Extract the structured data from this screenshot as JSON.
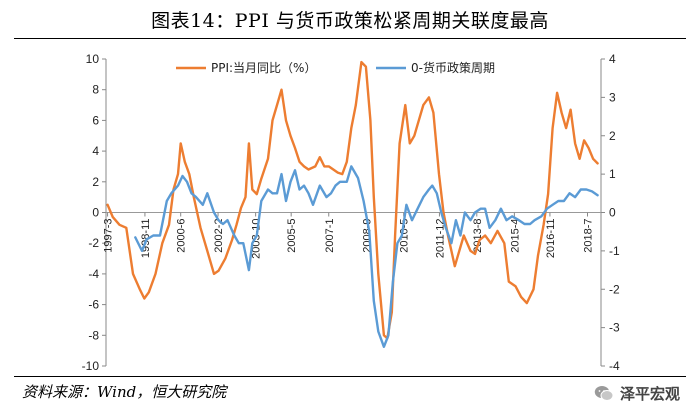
{
  "page": {
    "title": "图表14：PPI 与货币政策松紧周期关联度最高",
    "source": "资料来源：Wind，恒大研究院",
    "brand": "泽平宏观",
    "brand_icon": "wechat-icon"
  },
  "chart_data": {
    "type": "line",
    "title": "图表14：PPI 与货币政策松紧周期关联度最高",
    "left_axis": {
      "ylim": [
        -10,
        10
      ],
      "ticks": [
        -10,
        -8,
        -6,
        -4,
        -2,
        0,
        2,
        4,
        6,
        8,
        10
      ]
    },
    "right_axis": {
      "ylim": [
        -4,
        4
      ],
      "ticks": [
        -4,
        -3,
        -2,
        -1,
        0,
        1,
        2,
        3,
        4
      ]
    },
    "x_range": [
      1997.1,
      2019.1
    ],
    "x_ticks": [
      {
        "label": "1997-3",
        "x": 1997.17
      },
      {
        "label": "1998-11",
        "x": 1998.83
      },
      {
        "label": "2000-6",
        "x": 2000.42
      },
      {
        "label": "2002-2",
        "x": 2002.08
      },
      {
        "label": "2003-10",
        "x": 2003.75
      },
      {
        "label": "2005-5",
        "x": 2005.33
      },
      {
        "label": "2007-1",
        "x": 2007.0
      },
      {
        "label": "2008-9",
        "x": 2008.67
      },
      {
        "label": "2010-5",
        "x": 2010.33
      },
      {
        "label": "2011-12",
        "x": 2011.92
      },
      {
        "label": "2013-8",
        "x": 2013.58
      },
      {
        "label": "2015-4",
        "x": 2015.25
      },
      {
        "label": "2016-11",
        "x": 2016.83
      },
      {
        "label": "2018-7",
        "x": 2018.5
      }
    ],
    "legend": {
      "placement": "top"
    },
    "series": [
      {
        "name": "PPI:当月同比（%）",
        "axis": "left",
        "color": "#ED7D31",
        "points": [
          [
            1997.17,
            0.5
          ],
          [
            1997.4,
            -0.3
          ],
          [
            1997.7,
            -0.8
          ],
          [
            1998.0,
            -1.0
          ],
          [
            1998.3,
            -4.0
          ],
          [
            1998.6,
            -5.0
          ],
          [
            1998.8,
            -5.6
          ],
          [
            1999.0,
            -5.2
          ],
          [
            1999.3,
            -4.0
          ],
          [
            1999.6,
            -2.0
          ],
          [
            1999.9,
            -0.8
          ],
          [
            2000.1,
            1.5
          ],
          [
            2000.3,
            2.5
          ],
          [
            2000.42,
            4.5
          ],
          [
            2000.6,
            3.3
          ],
          [
            2000.8,
            2.5
          ],
          [
            2001.0,
            1.0
          ],
          [
            2001.3,
            -1.0
          ],
          [
            2001.6,
            -2.5
          ],
          [
            2001.9,
            -4.0
          ],
          [
            2002.1,
            -3.8
          ],
          [
            2002.4,
            -3.0
          ],
          [
            2002.7,
            -1.8
          ],
          [
            2002.9,
            -0.8
          ],
          [
            2003.1,
            0.3
          ],
          [
            2003.3,
            1.0
          ],
          [
            2003.45,
            4.5
          ],
          [
            2003.6,
            1.5
          ],
          [
            2003.8,
            1.2
          ],
          [
            2004.0,
            2.2
          ],
          [
            2004.3,
            3.5
          ],
          [
            2004.5,
            6.0
          ],
          [
            2004.7,
            7.0
          ],
          [
            2004.9,
            8.0
          ],
          [
            2005.1,
            6.0
          ],
          [
            2005.3,
            5.0
          ],
          [
            2005.5,
            4.2
          ],
          [
            2005.7,
            3.3
          ],
          [
            2005.9,
            3.0
          ],
          [
            2006.1,
            2.8
          ],
          [
            2006.4,
            3.0
          ],
          [
            2006.6,
            3.6
          ],
          [
            2006.8,
            3.0
          ],
          [
            2007.0,
            3.0
          ],
          [
            2007.2,
            2.8
          ],
          [
            2007.4,
            2.6
          ],
          [
            2007.6,
            2.5
          ],
          [
            2007.8,
            3.3
          ],
          [
            2008.0,
            5.5
          ],
          [
            2008.2,
            7.0
          ],
          [
            2008.45,
            9.8
          ],
          [
            2008.65,
            9.5
          ],
          [
            2008.85,
            6.0
          ],
          [
            2009.0,
            1.0
          ],
          [
            2009.2,
            -4.0
          ],
          [
            2009.45,
            -8.0
          ],
          [
            2009.6,
            -8.2
          ],
          [
            2009.8,
            -6.5
          ],
          [
            2009.95,
            -1.5
          ],
          [
            2010.15,
            4.5
          ],
          [
            2010.4,
            7.0
          ],
          [
            2010.6,
            4.5
          ],
          [
            2010.8,
            5.0
          ],
          [
            2011.0,
            6.0
          ],
          [
            2011.2,
            7.0
          ],
          [
            2011.45,
            7.5
          ],
          [
            2011.65,
            6.5
          ],
          [
            2011.9,
            2.5
          ],
          [
            2012.1,
            0.0
          ],
          [
            2012.3,
            -1.5
          ],
          [
            2012.6,
            -3.5
          ],
          [
            2012.8,
            -2.5
          ],
          [
            2013.0,
            -1.5
          ],
          [
            2013.3,
            -2.5
          ],
          [
            2013.5,
            -2.7
          ],
          [
            2013.7,
            -1.8
          ],
          [
            2013.95,
            -1.5
          ],
          [
            2014.2,
            -2.0
          ],
          [
            2014.5,
            -1.2
          ],
          [
            2014.8,
            -2.0
          ],
          [
            2015.0,
            -4.5
          ],
          [
            2015.3,
            -4.8
          ],
          [
            2015.55,
            -5.5
          ],
          [
            2015.8,
            -5.9
          ],
          [
            2016.1,
            -5.0
          ],
          [
            2016.3,
            -2.8
          ],
          [
            2016.55,
            -0.8
          ],
          [
            2016.75,
            1.2
          ],
          [
            2016.95,
            5.5
          ],
          [
            2017.15,
            7.8
          ],
          [
            2017.35,
            6.5
          ],
          [
            2017.55,
            5.5
          ],
          [
            2017.75,
            6.7
          ],
          [
            2017.95,
            4.5
          ],
          [
            2018.15,
            3.5
          ],
          [
            2018.35,
            4.7
          ],
          [
            2018.55,
            4.2
          ],
          [
            2018.75,
            3.5
          ],
          [
            2018.95,
            3.2
          ]
        ]
      },
      {
        "name": "0-货币政策周期",
        "axis": "right",
        "color": "#5B9BD5",
        "points": [
          [
            1998.4,
            -0.65
          ],
          [
            1998.7,
            -1.0
          ],
          [
            1998.9,
            -0.7
          ],
          [
            1999.2,
            -0.6
          ],
          [
            1999.5,
            -0.6
          ],
          [
            1999.8,
            0.3
          ],
          [
            2000.0,
            0.5
          ],
          [
            2000.3,
            0.7
          ],
          [
            2000.5,
            0.95
          ],
          [
            2000.7,
            0.8
          ],
          [
            2000.9,
            0.5
          ],
          [
            2001.1,
            0.4
          ],
          [
            2001.4,
            0.2
          ],
          [
            2001.6,
            0.5
          ],
          [
            2001.9,
            0.0
          ],
          [
            2002.1,
            -0.2
          ],
          [
            2002.3,
            -0.3
          ],
          [
            2002.5,
            -0.2
          ],
          [
            2002.8,
            -0.6
          ],
          [
            2003.0,
            -0.8
          ],
          [
            2003.2,
            -0.8
          ],
          [
            2003.45,
            -1.5
          ],
          [
            2003.6,
            -0.8
          ],
          [
            2003.8,
            -0.6
          ],
          [
            2004.0,
            0.3
          ],
          [
            2004.3,
            0.6
          ],
          [
            2004.5,
            0.5
          ],
          [
            2004.7,
            0.5
          ],
          [
            2004.9,
            1.0
          ],
          [
            2005.1,
            0.3
          ],
          [
            2005.3,
            0.8
          ],
          [
            2005.5,
            1.1
          ],
          [
            2005.7,
            0.6
          ],
          [
            2005.9,
            0.7
          ],
          [
            2006.1,
            0.5
          ],
          [
            2006.3,
            0.2
          ],
          [
            2006.6,
            0.7
          ],
          [
            2006.9,
            0.4
          ],
          [
            2007.1,
            0.5
          ],
          [
            2007.3,
            0.7
          ],
          [
            2007.5,
            0.8
          ],
          [
            2007.8,
            0.8
          ],
          [
            2008.0,
            1.2
          ],
          [
            2008.3,
            0.9
          ],
          [
            2008.55,
            0.3
          ],
          [
            2008.8,
            -0.5
          ],
          [
            2009.0,
            -2.3
          ],
          [
            2009.2,
            -3.1
          ],
          [
            2009.45,
            -3.5
          ],
          [
            2009.65,
            -3.2
          ],
          [
            2009.85,
            -1.8
          ],
          [
            2010.05,
            -0.8
          ],
          [
            2010.25,
            -0.6
          ],
          [
            2010.45,
            0.2
          ],
          [
            2010.7,
            -0.2
          ],
          [
            2010.95,
            0.1
          ],
          [
            2011.2,
            0.4
          ],
          [
            2011.45,
            0.6
          ],
          [
            2011.6,
            0.7
          ],
          [
            2011.8,
            0.5
          ],
          [
            2012.0,
            0.0
          ],
          [
            2012.2,
            -0.4
          ],
          [
            2012.45,
            -0.8
          ],
          [
            2012.65,
            -0.2
          ],
          [
            2012.85,
            -0.6
          ],
          [
            2013.05,
            0.0
          ],
          [
            2013.3,
            -0.2
          ],
          [
            2013.5,
            0.0
          ],
          [
            2013.75,
            0.1
          ],
          [
            2013.95,
            0.1
          ],
          [
            2014.15,
            -0.4
          ],
          [
            2014.4,
            -0.2
          ],
          [
            2014.65,
            0.1
          ],
          [
            2014.9,
            -0.2
          ],
          [
            2015.15,
            -0.1
          ],
          [
            2015.45,
            -0.2
          ],
          [
            2015.7,
            -0.3
          ],
          [
            2015.95,
            -0.3
          ],
          [
            2016.15,
            -0.2
          ],
          [
            2016.45,
            -0.1
          ],
          [
            2016.7,
            0.1
          ],
          [
            2016.95,
            0.2
          ],
          [
            2017.2,
            0.3
          ],
          [
            2017.45,
            0.3
          ],
          [
            2017.7,
            0.5
          ],
          [
            2017.95,
            0.4
          ],
          [
            2018.2,
            0.6
          ],
          [
            2018.45,
            0.6
          ],
          [
            2018.7,
            0.55
          ],
          [
            2018.95,
            0.45
          ]
        ]
      }
    ]
  }
}
